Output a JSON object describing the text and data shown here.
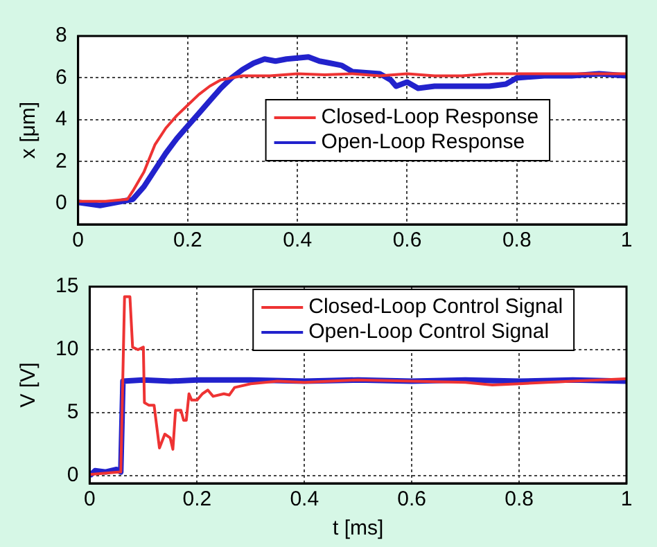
{
  "chart_data": [
    {
      "type": "line",
      "ylabel": "x [μm]",
      "xlim": [
        0,
        1
      ],
      "xticks": [
        0,
        0.2,
        0.4,
        0.6,
        0.8,
        1
      ],
      "ylim": [
        -1,
        8
      ],
      "yticks": [
        0,
        2,
        4,
        6,
        8
      ],
      "grid": true,
      "legend": "center",
      "line_style": "solid",
      "marker": "none",
      "series": [
        {
          "name": "Closed-Loop Response",
          "color": "#ee3333",
          "x": [
            0,
            0.05,
            0.09,
            0.1,
            0.12,
            0.14,
            0.16,
            0.18,
            0.2,
            0.22,
            0.24,
            0.26,
            0.28,
            0.3,
            0.35,
            0.4,
            0.45,
            0.5,
            0.55,
            0.6,
            0.65,
            0.7,
            0.75,
            0.8,
            0.85,
            0.9,
            0.95,
            1
          ],
          "values": [
            0.1,
            0.1,
            0.2,
            0.6,
            1.5,
            2.8,
            3.6,
            4.2,
            4.7,
            5.2,
            5.6,
            5.9,
            6.0,
            6.1,
            6.1,
            6.2,
            6.15,
            6.2,
            6.1,
            6.2,
            6.1,
            6.1,
            6.2,
            6.2,
            6.2,
            6.2,
            6.2,
            6.2
          ]
        },
        {
          "name": "Open-Loop Response",
          "color": "#2222cc",
          "x": [
            0,
            0.04,
            0.07,
            0.1,
            0.12,
            0.14,
            0.16,
            0.18,
            0.2,
            0.22,
            0.24,
            0.26,
            0.28,
            0.3,
            0.32,
            0.34,
            0.36,
            0.38,
            0.4,
            0.42,
            0.44,
            0.46,
            0.48,
            0.5,
            0.55,
            0.57,
            0.58,
            0.6,
            0.62,
            0.65,
            0.7,
            0.75,
            0.78,
            0.8,
            0.85,
            0.9,
            0.95,
            1
          ],
          "values": [
            0.05,
            -0.1,
            0.05,
            0.2,
            0.8,
            1.6,
            2.4,
            3.1,
            3.7,
            4.3,
            4.9,
            5.5,
            6.0,
            6.4,
            6.7,
            6.9,
            6.8,
            6.9,
            6.95,
            7.0,
            6.8,
            6.7,
            6.6,
            6.3,
            6.2,
            5.9,
            5.6,
            5.8,
            5.5,
            5.6,
            5.6,
            5.6,
            5.7,
            6.0,
            6.1,
            6.1,
            6.2,
            6.1
          ]
        }
      ]
    },
    {
      "type": "line",
      "xlabel": "t [ms]",
      "ylabel": "V [V]",
      "xlim": [
        0,
        1
      ],
      "xticks": [
        0,
        0.2,
        0.4,
        0.6,
        0.8,
        1
      ],
      "ylim": [
        -0.6,
        15
      ],
      "yticks": [
        0,
        5,
        10,
        15
      ],
      "grid": true,
      "legend": "top",
      "line_style": "solid",
      "marker": "none",
      "series": [
        {
          "name": "Closed-Loop Control Signal",
          "color": "#ee3333",
          "x": [
            0,
            0.058,
            0.065,
            0.075,
            0.08,
            0.09,
            0.1,
            0.102,
            0.11,
            0.12,
            0.13,
            0.14,
            0.15,
            0.155,
            0.16,
            0.17,
            0.175,
            0.18,
            0.185,
            0.19,
            0.2,
            0.21,
            0.22,
            0.23,
            0.25,
            0.26,
            0.27,
            0.3,
            0.35,
            0.4,
            0.5,
            0.6,
            0.7,
            0.75,
            0.8,
            0.9,
            1
          ],
          "values": [
            0.1,
            0.3,
            14.2,
            14.2,
            10.2,
            10.0,
            10.2,
            5.8,
            5.6,
            5.6,
            2.2,
            3.3,
            3.0,
            2.1,
            5.2,
            5.2,
            4.4,
            4.4,
            6.5,
            6.0,
            6.0,
            6.5,
            6.8,
            6.3,
            6.5,
            6.4,
            7.0,
            7.3,
            7.5,
            7.4,
            7.6,
            7.5,
            7.4,
            7.2,
            7.3,
            7.5,
            7.7
          ]
        },
        {
          "name": "Open-Loop Control Signal",
          "color": "#2222cc",
          "x": [
            0,
            0.01,
            0.03,
            0.05,
            0.058,
            0.062,
            0.1,
            0.15,
            0.2,
            0.3,
            0.4,
            0.5,
            0.6,
            0.7,
            0.8,
            0.9,
            1
          ],
          "values": [
            0,
            0.4,
            0.3,
            0.5,
            0.3,
            7.5,
            7.6,
            7.5,
            7.6,
            7.6,
            7.5,
            7.6,
            7.5,
            7.6,
            7.5,
            7.6,
            7.5
          ]
        }
      ]
    }
  ]
}
